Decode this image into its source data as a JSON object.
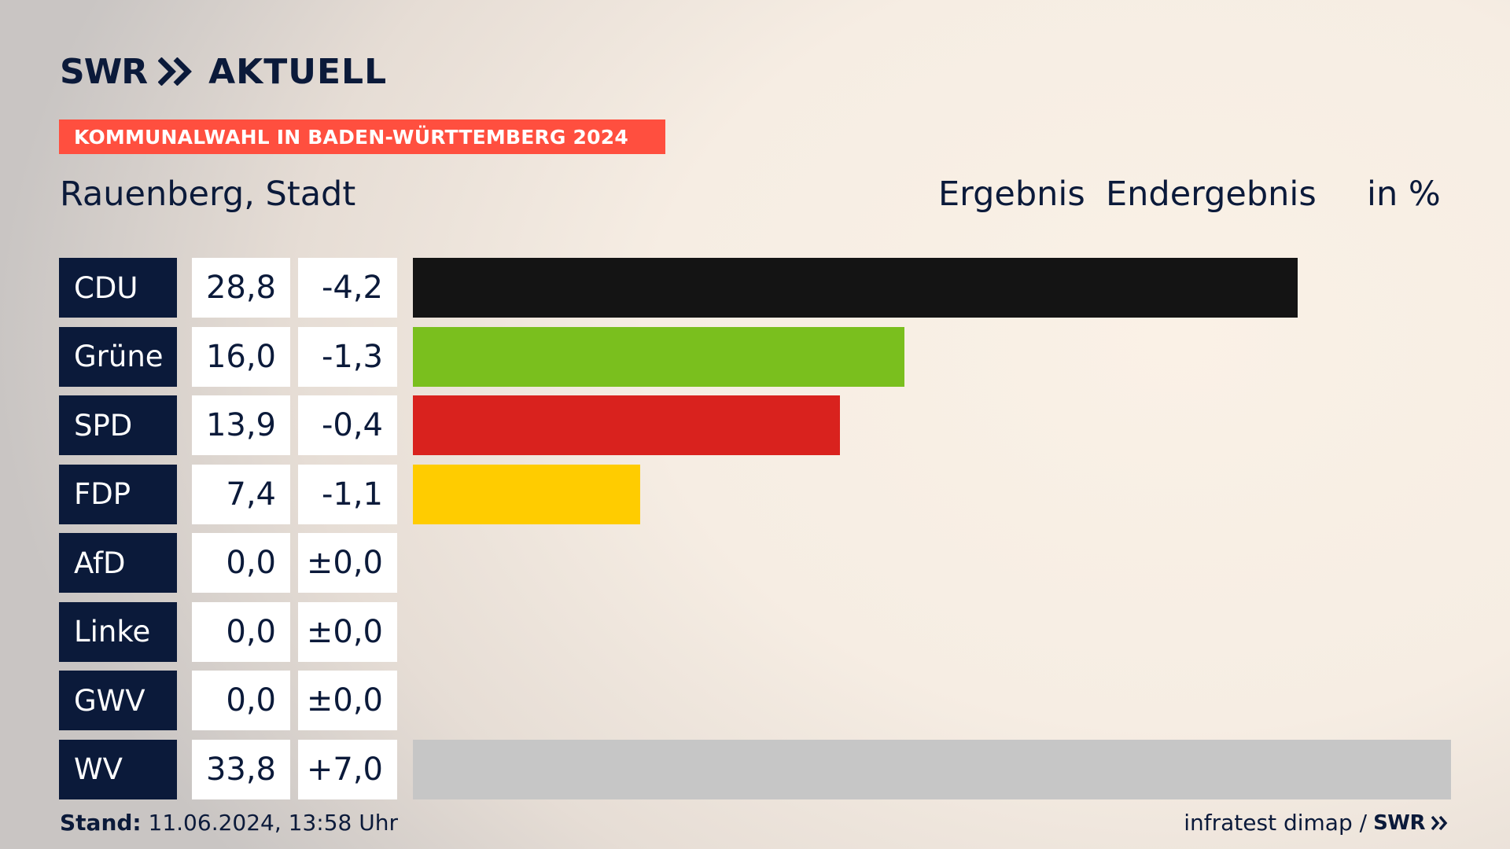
{
  "brand": {
    "logo_swr": "SWR",
    "logo_aktuell": "AKTUELL",
    "brand_color": "#0b1a3a",
    "accent": "#ff4f3f"
  },
  "banner": {
    "text": "KOMMUNALWAHL IN BADEN-WÜRTTEMBERG 2024"
  },
  "header": {
    "place": "Rauenberg, Stadt",
    "col_result": "Ergebnis",
    "col_final": "Endergebnis",
    "unit": "in %"
  },
  "chart_data": {
    "type": "bar",
    "orientation": "horizontal",
    "categories": [
      "CDU",
      "Grüne",
      "SPD",
      "FDP",
      "AfD",
      "Linke",
      "GWV",
      "WV"
    ],
    "values": [
      28.8,
      16.0,
      13.9,
      7.4,
      0.0,
      0.0,
      0.0,
      33.8
    ],
    "value_labels": [
      "28,8",
      "16,0",
      "13,9",
      "7,4",
      "0,0",
      "0,0",
      "0,0",
      "33,8"
    ],
    "diffs": [
      -4.2,
      -1.3,
      -0.4,
      -1.1,
      0.0,
      0.0,
      0.0,
      7.0
    ],
    "diff_labels": [
      "-4,2",
      "-1,3",
      "-0,4",
      "-1,1",
      "±0,0",
      "±0,0",
      "±0,0",
      "+7,0"
    ],
    "colors": [
      "#141414",
      "#7abf1e",
      "#d9221e",
      "#ffcc00",
      "#009ee0",
      "#be3075",
      "#888888",
      "#c6c6c6"
    ],
    "xlim": [
      0,
      33.8
    ]
  },
  "footer": {
    "stand_label": "Stand:",
    "stand_value": "11.06.2024, 13:58 Uhr",
    "source": "infratest dimap /",
    "source_brand": "SWR"
  }
}
